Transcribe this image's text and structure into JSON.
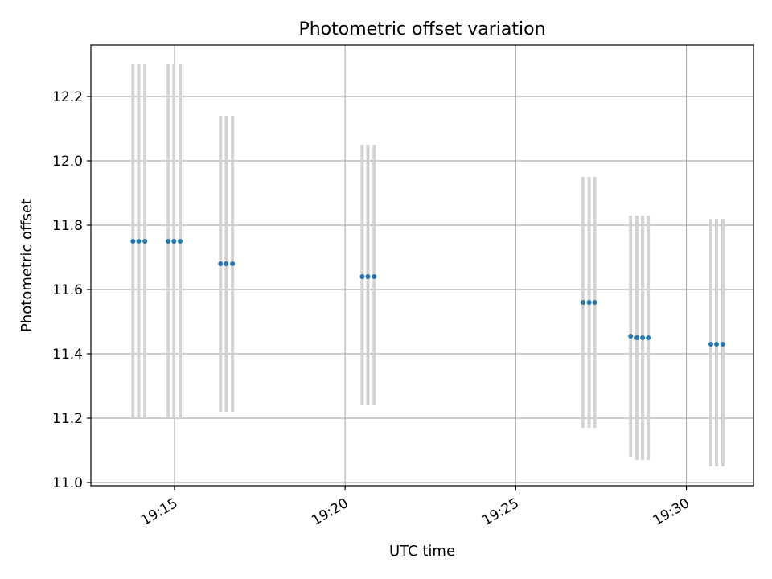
{
  "chart_data": {
    "type": "scatter",
    "title": "Photometric offset variation",
    "xlabel": "UTC time",
    "ylabel": "Photometric offset",
    "x_ticks": [
      "19:15",
      "19:20",
      "19:25",
      "19:30"
    ],
    "y_ticks": [
      "11.0",
      "11.2",
      "11.4",
      "11.6",
      "11.8",
      "12.0",
      "12.2"
    ],
    "xlim": [
      "19:12:33",
      "19:31:58"
    ],
    "ylim": [
      10.99,
      12.36
    ],
    "grid": true,
    "series": [
      {
        "points": [
          {
            "x": "19:13:47",
            "y": 11.75,
            "ylow": 11.2,
            "yhigh": 12.3
          },
          {
            "x": "19:13:57",
            "y": 11.75,
            "ylow": 11.2,
            "yhigh": 12.3
          },
          {
            "x": "19:14:08",
            "y": 11.75,
            "ylow": 11.2,
            "yhigh": 12.3
          },
          {
            "x": "19:14:49",
            "y": 11.75,
            "ylow": 11.2,
            "yhigh": 12.3
          },
          {
            "x": "19:14:59",
            "y": 11.75,
            "ylow": 11.2,
            "yhigh": 12.3
          },
          {
            "x": "19:15:10",
            "y": 11.75,
            "ylow": 11.2,
            "yhigh": 12.3
          },
          {
            "x": "19:16:21",
            "y": 11.68,
            "ylow": 11.22,
            "yhigh": 12.14
          },
          {
            "x": "19:16:31",
            "y": 11.68,
            "ylow": 11.22,
            "yhigh": 12.14
          },
          {
            "x": "19:16:42",
            "y": 11.68,
            "ylow": 11.22,
            "yhigh": 12.14
          },
          {
            "x": "19:20:30",
            "y": 11.64,
            "ylow": 11.24,
            "yhigh": 12.05
          },
          {
            "x": "19:20:40",
            "y": 11.64,
            "ylow": 11.24,
            "yhigh": 12.05
          },
          {
            "x": "19:20:51",
            "y": 11.64,
            "ylow": 11.24,
            "yhigh": 12.05
          },
          {
            "x": "19:26:58",
            "y": 11.56,
            "ylow": 11.17,
            "yhigh": 11.95
          },
          {
            "x": "19:27:09",
            "y": 11.56,
            "ylow": 11.17,
            "yhigh": 11.95
          },
          {
            "x": "19:27:19",
            "y": 11.56,
            "ylow": 11.17,
            "yhigh": 11.95
          },
          {
            "x": "19:28:22",
            "y": 11.455,
            "ylow": 11.08,
            "yhigh": 11.83
          },
          {
            "x": "19:28:33",
            "y": 11.45,
            "ylow": 11.07,
            "yhigh": 11.83
          },
          {
            "x": "19:28:43",
            "y": 11.45,
            "ylow": 11.07,
            "yhigh": 11.83
          },
          {
            "x": "19:28:53",
            "y": 11.45,
            "ylow": 11.07,
            "yhigh": 11.83
          },
          {
            "x": "19:30:43",
            "y": 11.43,
            "ylow": 11.05,
            "yhigh": 11.82
          },
          {
            "x": "19:30:53",
            "y": 11.43,
            "ylow": 11.05,
            "yhigh": 11.82
          },
          {
            "x": "19:31:04",
            "y": 11.43,
            "ylow": 11.05,
            "yhigh": 11.82
          }
        ]
      }
    ]
  },
  "colors": {
    "marker": "#1f77b4",
    "errorbar": "#d3d3d3",
    "grid": "#b0b0b0",
    "axes": "#000000"
  }
}
